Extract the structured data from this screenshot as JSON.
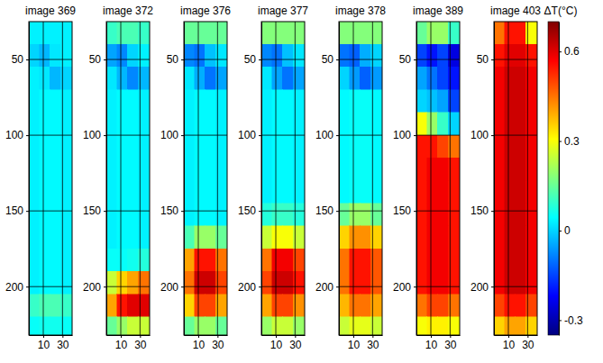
{
  "chart_data": [
    {
      "type": "heatmap",
      "title": "image 369",
      "xlim": [
        -5,
        40
      ],
      "ylim": [
        25,
        232
      ],
      "xticks": [
        10,
        30
      ],
      "yticks": [
        50,
        100,
        150,
        200
      ],
      "grid": true,
      "x_bins": [
        -5,
        6,
        17,
        28,
        40
      ],
      "y_bins": [
        25,
        40,
        55,
        70,
        85,
        100,
        115,
        130,
        145,
        160,
        175,
        190,
        205,
        220,
        232
      ],
      "values": [
        [
          0.03,
          0.03,
          0.03,
          0.03
        ],
        [
          0.0,
          -0.03,
          0.02,
          0.03
        ],
        [
          0.03,
          0.02,
          -0.03,
          0.0
        ],
        [
          0.03,
          0.04,
          0.04,
          0.03
        ],
        [
          0.03,
          0.04,
          0.04,
          0.03
        ],
        [
          0.03,
          0.04,
          0.04,
          0.03
        ],
        [
          0.03,
          0.04,
          0.04,
          0.03
        ],
        [
          0.03,
          0.04,
          0.04,
          0.03
        ],
        [
          0.03,
          0.04,
          0.04,
          0.03
        ],
        [
          0.03,
          0.04,
          0.04,
          0.03
        ],
        [
          0.03,
          0.04,
          0.04,
          0.03
        ],
        [
          0.03,
          0.04,
          0.04,
          0.03
        ],
        [
          0.1,
          0.12,
          0.12,
          0.1
        ],
        [
          0.05,
          0.06,
          0.06,
          0.05
        ]
      ]
    },
    {
      "type": "heatmap",
      "title": "image 372",
      "xlim": [
        -5,
        40
      ],
      "ylim": [
        25,
        232
      ],
      "xticks": [
        10,
        30
      ],
      "yticks": [
        50,
        100,
        150,
        200
      ],
      "grid": true,
      "x_bins": [
        -5,
        6,
        17,
        28,
        40
      ],
      "y_bins": [
        25,
        40,
        55,
        70,
        85,
        100,
        115,
        130,
        145,
        160,
        175,
        190,
        205,
        220,
        232
      ],
      "values": [
        [
          0.1,
          0.12,
          0.12,
          0.1
        ],
        [
          -0.05,
          -0.08,
          0.0,
          0.03
        ],
        [
          0.02,
          -0.03,
          -0.08,
          -0.03
        ],
        [
          0.03,
          0.04,
          0.04,
          0.03
        ],
        [
          0.03,
          0.04,
          0.04,
          0.03
        ],
        [
          0.03,
          0.04,
          0.04,
          0.03
        ],
        [
          0.03,
          0.04,
          0.04,
          0.03
        ],
        [
          0.03,
          0.04,
          0.04,
          0.03
        ],
        [
          0.03,
          0.04,
          0.04,
          0.03
        ],
        [
          0.03,
          0.04,
          0.04,
          0.03
        ],
        [
          0.05,
          0.05,
          0.06,
          0.08
        ],
        [
          0.25,
          0.35,
          0.4,
          0.45
        ],
        [
          0.4,
          0.55,
          0.6,
          0.6
        ],
        [
          0.15,
          0.2,
          0.25,
          0.25
        ]
      ]
    },
    {
      "type": "heatmap",
      "title": "image 376",
      "xlim": [
        -5,
        40
      ],
      "ylim": [
        25,
        232
      ],
      "xticks": [
        10,
        30
      ],
      "yticks": [
        50,
        100,
        150,
        200
      ],
      "grid": true,
      "x_bins": [
        -5,
        6,
        17,
        28,
        40
      ],
      "y_bins": [
        25,
        40,
        55,
        70,
        85,
        100,
        115,
        130,
        145,
        160,
        175,
        190,
        205,
        220,
        232
      ],
      "values": [
        [
          0.15,
          0.15,
          0.15,
          0.15
        ],
        [
          -0.08,
          -0.1,
          -0.02,
          0.02
        ],
        [
          0.02,
          -0.04,
          -0.1,
          -0.05
        ],
        [
          0.03,
          0.04,
          0.04,
          0.03
        ],
        [
          0.03,
          0.04,
          0.04,
          0.03
        ],
        [
          0.03,
          0.04,
          0.04,
          0.03
        ],
        [
          0.03,
          0.04,
          0.04,
          0.03
        ],
        [
          0.03,
          0.04,
          0.04,
          0.03
        ],
        [
          0.03,
          0.04,
          0.04,
          0.03
        ],
        [
          0.12,
          0.2,
          0.2,
          0.15
        ],
        [
          0.4,
          0.55,
          0.55,
          0.45
        ],
        [
          0.45,
          0.62,
          0.62,
          0.5
        ],
        [
          0.35,
          0.5,
          0.5,
          0.4
        ],
        [
          0.15,
          0.2,
          0.2,
          0.15
        ]
      ]
    },
    {
      "type": "heatmap",
      "title": "image 377",
      "xlim": [
        -5,
        40
      ],
      "ylim": [
        25,
        232
      ],
      "xticks": [
        10,
        30
      ],
      "yticks": [
        50,
        100,
        150,
        200
      ],
      "grid": true,
      "x_bins": [
        -5,
        6,
        17,
        28,
        40
      ],
      "y_bins": [
        25,
        40,
        55,
        70,
        85,
        100,
        115,
        130,
        145,
        160,
        175,
        190,
        205,
        220,
        232
      ],
      "values": [
        [
          0.18,
          0.18,
          0.18,
          0.18
        ],
        [
          -0.08,
          -0.1,
          -0.02,
          0.02
        ],
        [
          0.02,
          -0.05,
          -0.1,
          -0.05
        ],
        [
          0.03,
          0.04,
          0.04,
          0.03
        ],
        [
          0.03,
          0.04,
          0.04,
          0.03
        ],
        [
          0.03,
          0.04,
          0.04,
          0.03
        ],
        [
          0.03,
          0.04,
          0.04,
          0.03
        ],
        [
          0.03,
          0.04,
          0.04,
          0.03
        ],
        [
          0.08,
          0.1,
          0.1,
          0.08
        ],
        [
          0.25,
          0.3,
          0.3,
          0.25
        ],
        [
          0.45,
          0.58,
          0.58,
          0.5
        ],
        [
          0.5,
          0.62,
          0.62,
          0.55
        ],
        [
          0.4,
          0.5,
          0.5,
          0.42
        ],
        [
          0.2,
          0.25,
          0.25,
          0.2
        ]
      ]
    },
    {
      "type": "heatmap",
      "title": "image 378",
      "xlim": [
        -5,
        40
      ],
      "ylim": [
        25,
        232
      ],
      "xticks": [
        10,
        30
      ],
      "yticks": [
        50,
        100,
        150,
        200
      ],
      "grid": true,
      "x_bins": [
        -5,
        6,
        17,
        28,
        40
      ],
      "y_bins": [
        25,
        40,
        55,
        70,
        85,
        100,
        115,
        130,
        145,
        160,
        175,
        190,
        205,
        220,
        232
      ],
      "values": [
        [
          0.18,
          0.18,
          0.18,
          0.18
        ],
        [
          -0.1,
          -0.12,
          -0.04,
          0.0
        ],
        [
          0.0,
          -0.06,
          -0.12,
          -0.06
        ],
        [
          0.04,
          0.05,
          0.05,
          0.04
        ],
        [
          0.04,
          0.05,
          0.05,
          0.04
        ],
        [
          0.04,
          0.05,
          0.05,
          0.04
        ],
        [
          0.04,
          0.05,
          0.05,
          0.04
        ],
        [
          0.04,
          0.05,
          0.05,
          0.04
        ],
        [
          0.15,
          0.2,
          0.2,
          0.15
        ],
        [
          0.35,
          0.42,
          0.42,
          0.35
        ],
        [
          0.45,
          0.55,
          0.55,
          0.48
        ],
        [
          0.45,
          0.55,
          0.55,
          0.48
        ],
        [
          0.38,
          0.45,
          0.45,
          0.4
        ],
        [
          0.25,
          0.28,
          0.28,
          0.25
        ]
      ]
    },
    {
      "type": "heatmap",
      "title": "image 389",
      "xlim": [
        -5,
        40
      ],
      "ylim": [
        25,
        232
      ],
      "xticks": [
        10,
        30
      ],
      "yticks": [
        50,
        100,
        150,
        200
      ],
      "grid": true,
      "x_bins": [
        -5,
        6,
        17,
        28,
        40
      ],
      "y_bins": [
        25,
        40,
        55,
        70,
        85,
        100,
        115,
        130,
        145,
        160,
        175,
        190,
        205,
        220,
        232
      ],
      "values": [
        [
          0.15,
          0.2,
          0.2,
          0.1
        ],
        [
          -0.15,
          -0.2,
          -0.15,
          -0.25
        ],
        [
          -0.05,
          -0.1,
          -0.15,
          -0.2
        ],
        [
          0.0,
          -0.02,
          -0.05,
          -0.15
        ],
        [
          0.3,
          0.2,
          0.1,
          0.0
        ],
        [
          0.55,
          0.55,
          0.5,
          0.45
        ],
        [
          0.55,
          0.58,
          0.58,
          0.55
        ],
        [
          0.55,
          0.58,
          0.58,
          0.55
        ],
        [
          0.55,
          0.58,
          0.58,
          0.55
        ],
        [
          0.55,
          0.58,
          0.58,
          0.55
        ],
        [
          0.55,
          0.58,
          0.58,
          0.55
        ],
        [
          0.55,
          0.58,
          0.58,
          0.55
        ],
        [
          0.45,
          0.5,
          0.5,
          0.45
        ],
        [
          0.3,
          0.32,
          0.32,
          0.3
        ]
      ]
    },
    {
      "type": "heatmap",
      "title": "image 403",
      "xlim": [
        -5,
        40
      ],
      "ylim": [
        25,
        232
      ],
      "xticks": [
        10,
        30
      ],
      "yticks": [
        50,
        100,
        150,
        200
      ],
      "grid": true,
      "x_bins": [
        -5,
        6,
        17,
        28,
        40
      ],
      "y_bins": [
        25,
        40,
        55,
        70,
        85,
        100,
        115,
        130,
        145,
        160,
        175,
        190,
        205,
        220,
        232
      ],
      "values": [
        [
          0.45,
          0.55,
          0.55,
          0.3
        ],
        [
          0.55,
          0.6,
          0.6,
          0.55
        ],
        [
          0.58,
          0.62,
          0.62,
          0.58
        ],
        [
          0.58,
          0.62,
          0.62,
          0.58
        ],
        [
          0.58,
          0.62,
          0.62,
          0.58
        ],
        [
          0.58,
          0.62,
          0.62,
          0.58
        ],
        [
          0.58,
          0.62,
          0.62,
          0.58
        ],
        [
          0.58,
          0.62,
          0.62,
          0.58
        ],
        [
          0.58,
          0.62,
          0.62,
          0.58
        ],
        [
          0.58,
          0.62,
          0.62,
          0.58
        ],
        [
          0.58,
          0.62,
          0.62,
          0.58
        ],
        [
          0.58,
          0.62,
          0.62,
          0.58
        ],
        [
          0.5,
          0.55,
          0.55,
          0.5
        ],
        [
          0.35,
          0.4,
          0.4,
          0.35
        ]
      ]
    },
    {
      "type": "colorbar",
      "title": "ΔT(°C)",
      "range": [
        -0.35,
        0.7
      ],
      "ticks": [
        -0.3,
        0,
        0.3,
        0.6
      ]
    }
  ]
}
